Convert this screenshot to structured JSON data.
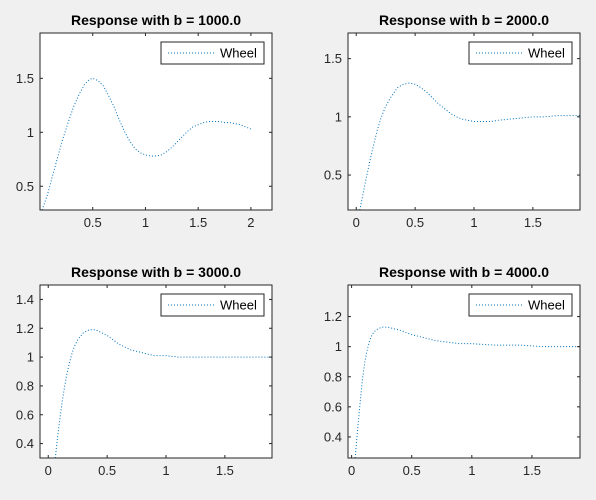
{
  "chart_data": [
    {
      "type": "line",
      "title": "Response with b = 1000.0",
      "xlabel": "",
      "ylabel": "",
      "xlim": [
        0,
        2.2
      ],
      "ylim": [
        0.28,
        1.92
      ],
      "xticks": [
        0.5,
        1,
        1.5,
        2
      ],
      "xtick_labels": [
        "0.5",
        "1",
        "1.5",
        "2"
      ],
      "yticks": [
        0.5,
        1,
        1.5
      ],
      "ytick_labels": [
        "0.5",
        "1",
        "1.5"
      ],
      "legend": "top-right",
      "grid": false,
      "series": [
        {
          "name": "Wheel",
          "color": "#0072bd",
          "style": "dotted",
          "x": [
            0.02,
            0.07,
            0.12,
            0.17,
            0.22,
            0.27,
            0.32,
            0.37,
            0.42,
            0.47,
            0.5,
            0.55,
            0.6,
            0.65,
            0.7,
            0.75,
            0.8,
            0.85,
            0.9,
            0.95,
            1.0,
            1.05,
            1.1,
            1.15,
            1.2,
            1.25,
            1.3,
            1.35,
            1.4,
            1.45,
            1.5,
            1.55,
            1.6,
            1.65,
            1.7,
            1.75,
            1.8,
            1.85,
            1.9,
            1.95,
            2.0
          ],
          "y": [
            0.28,
            0.42,
            0.6,
            0.78,
            0.95,
            1.1,
            1.24,
            1.35,
            1.44,
            1.49,
            1.5,
            1.48,
            1.43,
            1.34,
            1.24,
            1.12,
            1.01,
            0.92,
            0.85,
            0.81,
            0.79,
            0.78,
            0.78,
            0.79,
            0.82,
            0.86,
            0.91,
            0.96,
            1.01,
            1.05,
            1.07,
            1.09,
            1.1,
            1.1,
            1.1,
            1.09,
            1.09,
            1.08,
            1.07,
            1.05,
            1.03
          ]
        }
      ]
    },
    {
      "type": "line",
      "title": "Response with b = 2000.0",
      "xlabel": "",
      "ylabel": "",
      "xlim": [
        -0.07,
        1.9
      ],
      "ylim": [
        0.2,
        1.72
      ],
      "xticks": [
        0,
        0.5,
        1,
        1.5
      ],
      "xtick_labels": [
        "0",
        "0.5",
        "1",
        "1.5"
      ],
      "yticks": [
        0.5,
        1,
        1.5
      ],
      "ytick_labels": [
        "0.5",
        "1",
        "1.5"
      ],
      "legend": "top-right",
      "grid": false,
      "series": [
        {
          "name": "Wheel",
          "color": "#0072bd",
          "style": "dotted",
          "x": [
            0.03,
            0.06,
            0.09,
            0.12,
            0.15,
            0.18,
            0.21,
            0.25,
            0.3,
            0.35,
            0.4,
            0.45,
            0.5,
            0.55,
            0.6,
            0.65,
            0.7,
            0.75,
            0.8,
            0.85,
            0.9,
            0.95,
            1.0,
            1.05,
            1.1,
            1.15,
            1.2,
            1.3,
            1.4,
            1.5,
            1.6,
            1.7,
            1.8,
            1.9
          ],
          "y": [
            0.2,
            0.35,
            0.5,
            0.64,
            0.77,
            0.89,
            0.99,
            1.09,
            1.18,
            1.25,
            1.28,
            1.29,
            1.28,
            1.25,
            1.21,
            1.16,
            1.11,
            1.07,
            1.03,
            1.0,
            0.98,
            0.97,
            0.96,
            0.96,
            0.96,
            0.96,
            0.97,
            0.98,
            0.99,
            1.0,
            1.0,
            1.01,
            1.01,
            1.01
          ]
        }
      ]
    },
    {
      "type": "line",
      "title": "Response with b = 3000.0",
      "xlabel": "",
      "ylabel": "",
      "xlim": [
        -0.07,
        1.9
      ],
      "ylim": [
        0.3,
        1.5
      ],
      "xticks": [
        0,
        0.5,
        1,
        1.5
      ],
      "xtick_labels": [
        "0",
        "0.5",
        "1",
        "1.5"
      ],
      "yticks": [
        0.4,
        0.6,
        0.8,
        1,
        1.2,
        1.4
      ],
      "ytick_labels": [
        "0.4",
        "0.6",
        "0.8",
        "1",
        "1.2",
        "1.4"
      ],
      "legend": "top-right",
      "grid": false,
      "series": [
        {
          "name": "Wheel",
          "color": "#0072bd",
          "style": "dotted",
          "x": [
            0.06,
            0.08,
            0.1,
            0.12,
            0.14,
            0.16,
            0.18,
            0.2,
            0.22,
            0.25,
            0.3,
            0.35,
            0.4,
            0.45,
            0.5,
            0.55,
            0.6,
            0.7,
            0.8,
            0.9,
            1.0,
            1.1,
            1.2,
            1.4,
            1.6,
            1.8,
            1.9
          ],
          "y": [
            0.3,
            0.45,
            0.58,
            0.7,
            0.8,
            0.89,
            0.96,
            1.02,
            1.07,
            1.12,
            1.17,
            1.19,
            1.19,
            1.17,
            1.15,
            1.12,
            1.09,
            1.05,
            1.03,
            1.01,
            1.01,
            1.0,
            1.0,
            1.0,
            1.0,
            1.0,
            1.0
          ]
        }
      ]
    },
    {
      "type": "line",
      "title": "Response with b = 4000.0",
      "xlabel": "",
      "ylabel": "",
      "xlim": [
        -0.03,
        1.9
      ],
      "ylim": [
        0.26,
        1.41
      ],
      "xticks": [
        0,
        0.5,
        1,
        1.5
      ],
      "xtick_labels": [
        "0",
        "0.5",
        "1",
        "1.5"
      ],
      "yticks": [
        0.4,
        0.6,
        0.8,
        1,
        1.2
      ],
      "ytick_labels": [
        "0.4",
        "0.6",
        "0.8",
        "1",
        "1.2"
      ],
      "legend": "top-right",
      "grid": false,
      "series": [
        {
          "name": "Wheel",
          "color": "#0072bd",
          "style": "dotted",
          "x": [
            0.03,
            0.05,
            0.07,
            0.09,
            0.11,
            0.13,
            0.15,
            0.17,
            0.2,
            0.25,
            0.3,
            0.35,
            0.4,
            0.5,
            0.6,
            0.7,
            0.8,
            0.9,
            1.0,
            1.2,
            1.4,
            1.6,
            1.8,
            1.9
          ],
          "y": [
            0.26,
            0.45,
            0.62,
            0.78,
            0.9,
            0.98,
            1.04,
            1.08,
            1.11,
            1.13,
            1.13,
            1.12,
            1.11,
            1.08,
            1.06,
            1.04,
            1.03,
            1.02,
            1.02,
            1.01,
            1.01,
            1.0,
            1.0,
            1.0
          ]
        }
      ]
    }
  ]
}
